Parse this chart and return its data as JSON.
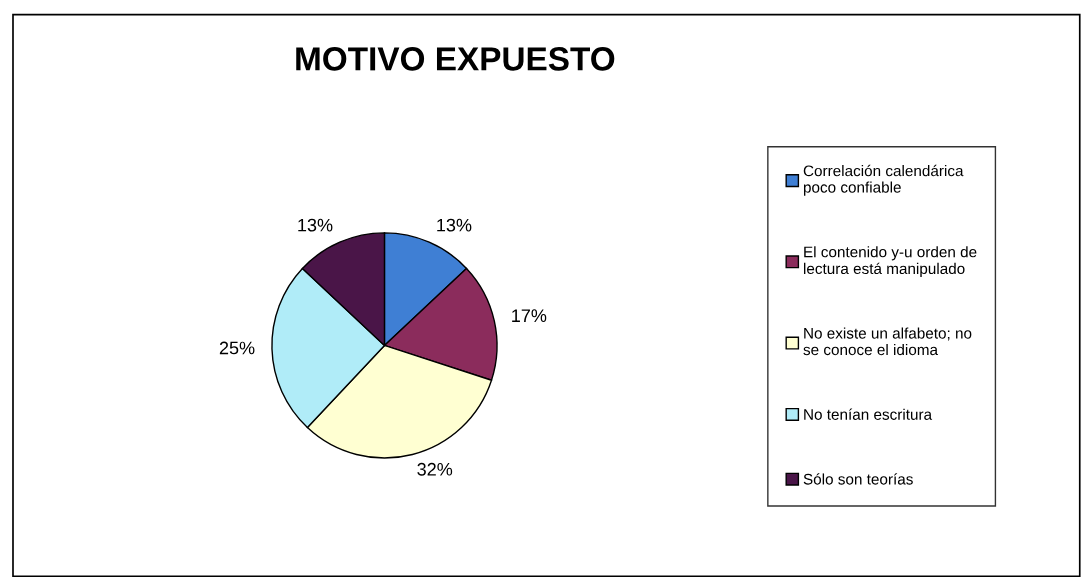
{
  "chart_data": {
    "type": "pie",
    "title": "MOTIVO EXPUESTO",
    "categories": [
      "Correlación calendárica\npoco confiable",
      "El contenido y-u orden de\nlectura está manipulado",
      "No existe un alfabeto; no\nse conoce el idioma",
      "No tenían escritura",
      "Sólo son teorías"
    ],
    "values": [
      13,
      17,
      32,
      25,
      13
    ],
    "colors": [
      "#3f7fd4",
      "#8b2c5c",
      "#ffffd2",
      "#b0ecf8",
      "#4a1548"
    ],
    "value_labels": [
      "13%",
      "17%",
      "32%",
      "25%",
      "13%"
    ],
    "legend": "right"
  }
}
